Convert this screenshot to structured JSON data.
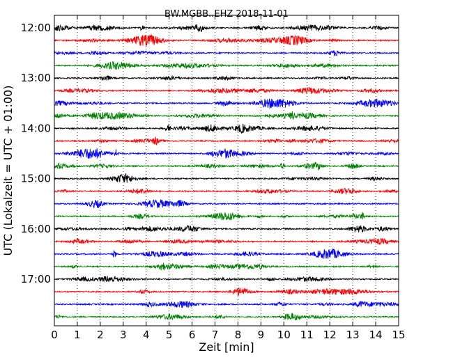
{
  "chart_data": {
    "type": "line",
    "title": "BW.MGBB..EHZ 2018-11-01",
    "xlabel": "Zeit  [min]",
    "ylabel": "UTC (Lokalzeit = UTC + 01:00)",
    "xlim": [
      0,
      15
    ],
    "x_ticks": [
      0,
      1,
      2,
      3,
      4,
      5,
      6,
      7,
      8,
      9,
      10,
      11,
      12,
      13,
      14,
      15
    ],
    "x_tick_labels": [
      "0",
      "1",
      "2",
      "3",
      "4",
      "5",
      "6",
      "7",
      "8",
      "9",
      "10",
      "11",
      "12",
      "13",
      "14",
      "15"
    ],
    "y_tick_labels": [
      "12:00",
      "13:00",
      "14:00",
      "15:00",
      "16:00",
      "17:00"
    ],
    "grid": "vertical dotted",
    "color_cycle": [
      "#000000",
      "#ff0000",
      "#0000ff",
      "#008000"
    ],
    "series": [
      {
        "start": "12:00",
        "color": "#000000"
      },
      {
        "start": "12:15",
        "color": "#ff0000"
      },
      {
        "start": "12:30",
        "color": "#0000ff"
      },
      {
        "start": "12:45",
        "color": "#008000"
      },
      {
        "start": "13:00",
        "color": "#000000"
      },
      {
        "start": "13:15",
        "color": "#ff0000"
      },
      {
        "start": "13:30",
        "color": "#0000ff"
      },
      {
        "start": "13:45",
        "color": "#008000"
      },
      {
        "start": "14:00",
        "color": "#000000"
      },
      {
        "start": "14:15",
        "color": "#ff0000"
      },
      {
        "start": "14:30",
        "color": "#0000ff"
      },
      {
        "start": "14:45",
        "color": "#008000"
      },
      {
        "start": "15:00",
        "color": "#000000"
      },
      {
        "start": "15:15",
        "color": "#ff0000"
      },
      {
        "start": "15:30",
        "color": "#0000ff"
      },
      {
        "start": "15:45",
        "color": "#008000"
      },
      {
        "start": "16:00",
        "color": "#000000"
      },
      {
        "start": "16:15",
        "color": "#ff0000"
      },
      {
        "start": "16:30",
        "color": "#0000ff"
      },
      {
        "start": "16:45",
        "color": "#008000"
      },
      {
        "start": "17:00",
        "color": "#000000"
      },
      {
        "start": "17:15",
        "color": "#ff0000"
      },
      {
        "start": "17:30",
        "color": "#0000ff"
      },
      {
        "start": "17:45",
        "color": "#008000"
      }
    ]
  }
}
